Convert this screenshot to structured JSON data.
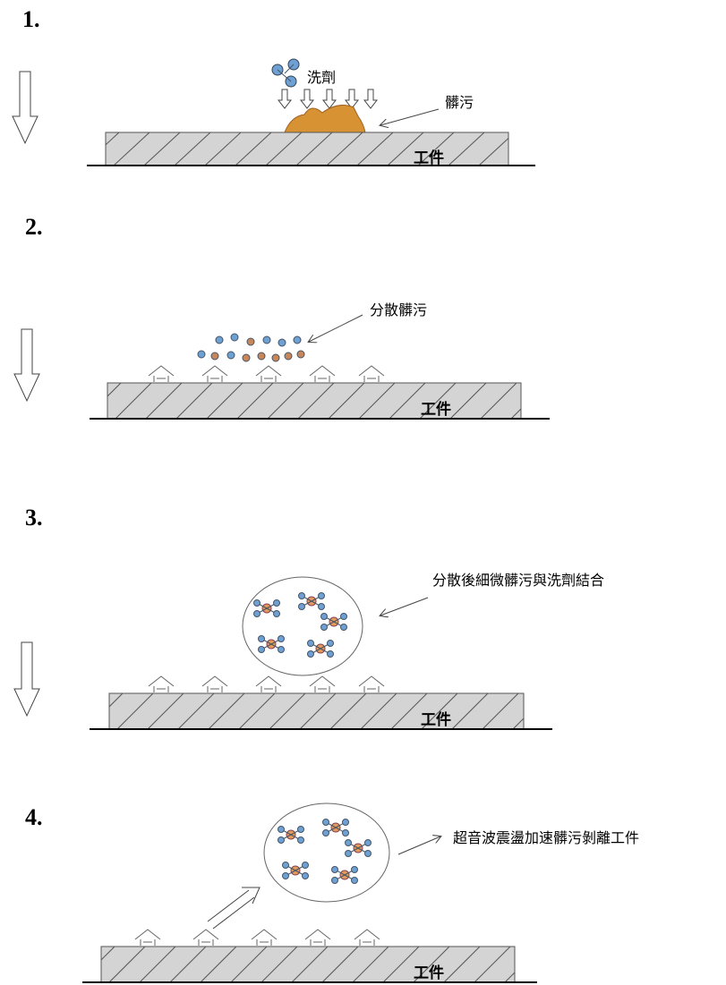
{
  "steps": [
    {
      "number": "1.",
      "labels": [
        "洗劑",
        "髒污"
      ],
      "workpiece": "工件"
    },
    {
      "number": "2.",
      "labels": [
        "分散髒污"
      ],
      "workpiece": "工件"
    },
    {
      "number": "3.",
      "labels": [
        "分散後細微髒污與洗劑結合"
      ],
      "workpiece": "工件"
    },
    {
      "number": "4.",
      "labels": [
        "超音波震盪加速髒污剝離工件"
      ],
      "workpiece": "工件"
    }
  ]
}
